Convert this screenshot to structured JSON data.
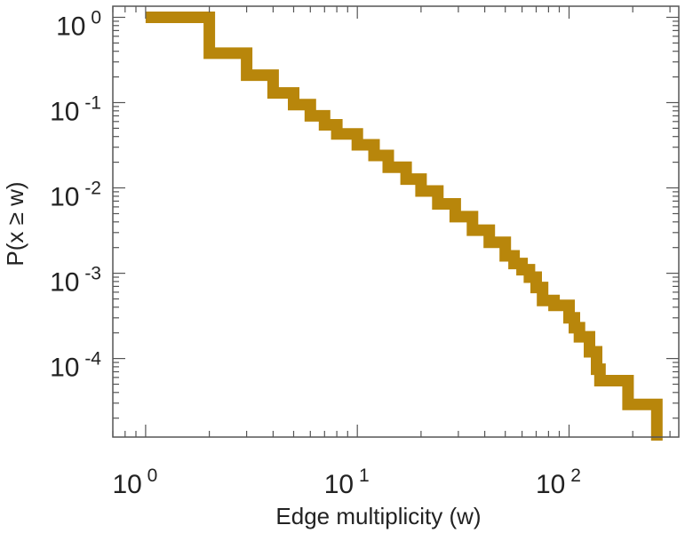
{
  "chart_data": {
    "type": "line",
    "subtype": "step-ccdf",
    "title": "",
    "xlabel": "Edge multiplicity (w)",
    "ylabel": "P(x ≥ w)",
    "xscale": "log",
    "yscale": "log",
    "xlim": [
      0.7,
      330
    ],
    "ylim": [
      1.2e-05,
      1.35
    ],
    "grid": false,
    "x_ticks": [
      {
        "value": 1,
        "base": "10",
        "exp": "0"
      },
      {
        "value": 10,
        "base": "10",
        "exp": "1"
      },
      {
        "value": 100,
        "base": "10",
        "exp": "2"
      }
    ],
    "y_ticks": [
      {
        "value": 1,
        "base": "10",
        "exp": "0"
      },
      {
        "value": 0.1,
        "base": "10",
        "exp": "-1"
      },
      {
        "value": 0.01,
        "base": "10",
        "exp": "-2"
      },
      {
        "value": 0.001,
        "base": "10",
        "exp": "-3"
      },
      {
        "value": 0.0001,
        "base": "10",
        "exp": "-4"
      }
    ],
    "series": [
      {
        "name": "P(x ≥ w)",
        "color": "#b8860b",
        "points": [
          [
            1,
            1.0
          ],
          [
            2,
            0.38
          ],
          [
            3,
            0.21
          ],
          [
            4,
            0.13
          ],
          [
            5,
            0.095
          ],
          [
            6,
            0.07
          ],
          [
            7,
            0.055
          ],
          [
            8,
            0.043
          ],
          [
            10,
            0.032
          ],
          [
            12,
            0.024
          ],
          [
            14,
            0.0175
          ],
          [
            17,
            0.0127
          ],
          [
            20,
            0.0092
          ],
          [
            24,
            0.0065
          ],
          [
            29,
            0.0046
          ],
          [
            35,
            0.0032
          ],
          [
            42,
            0.0023
          ],
          [
            50,
            0.0016
          ],
          [
            55,
            0.0013
          ],
          [
            60,
            0.0011
          ],
          [
            65,
            0.0009
          ],
          [
            70,
            0.00068
          ],
          [
            75,
            0.00048
          ],
          [
            85,
            0.00042
          ],
          [
            100,
            0.0003
          ],
          [
            106,
            0.00023
          ],
          [
            112,
            0.00018
          ],
          [
            125,
            0.00012
          ],
          [
            135,
            7.5e-05
          ],
          [
            140,
            5.5e-05
          ],
          [
            190,
            2.9e-05
          ],
          [
            260,
            1.3e-05
          ]
        ]
      }
    ]
  }
}
